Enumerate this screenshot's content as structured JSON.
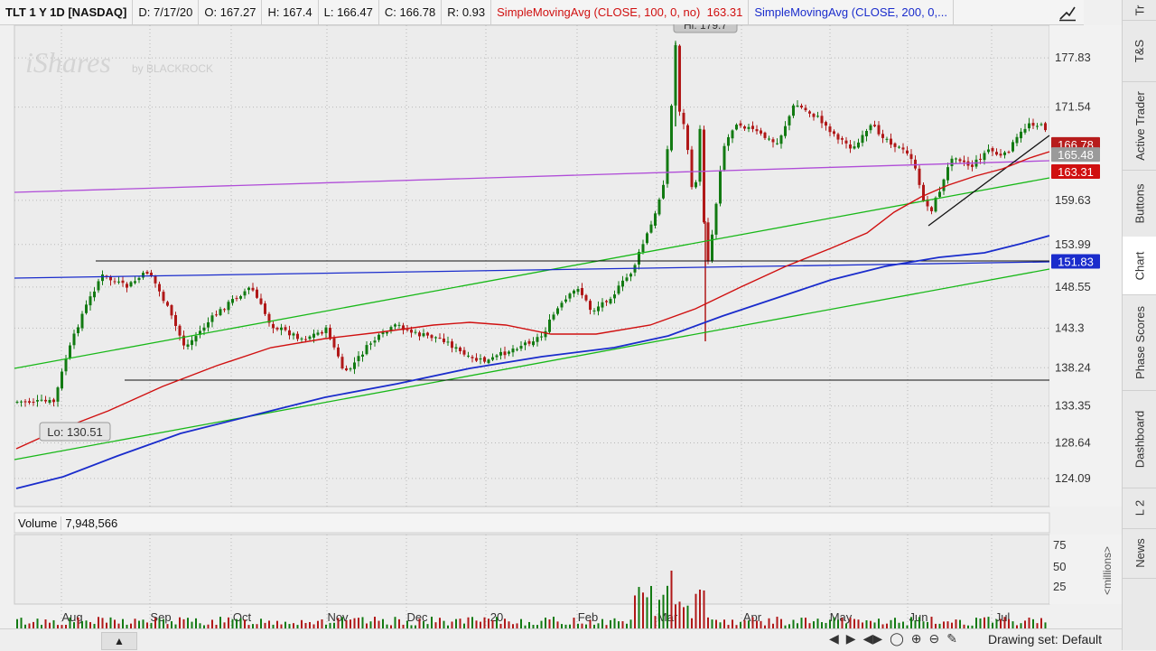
{
  "header": {
    "symbol": "TLT 1 Y 1D [NASDAQ]",
    "date": "D: 7/17/20",
    "open": "O: 167.27",
    "high": "H: 167.4",
    "low": "L: 166.47",
    "close": "C: 166.78",
    "range": "R: 0.93",
    "sma100_label": "SimpleMovingAvg (CLOSE, 100, 0, no)",
    "sma100_value": "163.31",
    "sma200_label": "SimpleMovingAvg (CLOSE, 200, 0,..."
  },
  "watermark": {
    "brand": "iShares",
    "by": "by BLACKROCK"
  },
  "tabs": [
    "Tr",
    "T&S",
    "Active Trader",
    "Buttons",
    "Chart",
    "Phase Scores",
    "Dashboard",
    "L 2",
    "News"
  ],
  "volume": {
    "label": "Volume",
    "value": "7,948,566",
    "unit": "<millions>",
    "ticks": [
      "75",
      "50",
      "25"
    ]
  },
  "bottom": {
    "drawing_set": "Drawing set: Default"
  },
  "chart_data": {
    "type": "candlestick",
    "x_labels": [
      "Aug",
      "Sep",
      "Oct",
      "Nov",
      "Dec",
      "20",
      "Feb",
      "Mar",
      "Apr",
      "May",
      "Jun",
      "Jul"
    ],
    "y_ticks": [
      "177.83",
      "171.54",
      "159.63",
      "153.99",
      "148.55",
      "143.3",
      "138.24",
      "133.35",
      "128.64",
      "124.09"
    ],
    "ylim": [
      120.5,
      182
    ],
    "price_badges": [
      {
        "value": "166.78",
        "color": "#b71c1c"
      },
      {
        "value": "165.48",
        "color": "#9a9a9a"
      },
      {
        "value": "163.31",
        "color": "#d01010"
      },
      {
        "value": "151.83",
        "color": "#1a2ccc"
      }
    ],
    "hi_label": "Hi: 179.7",
    "lo_label": "Lo: 130.51",
    "sma_colors": {
      "sma100": "#d01010",
      "sma200": "#1a2ccc"
    },
    "candles_up": "#127a12",
    "candles_down": "#b01818"
  }
}
